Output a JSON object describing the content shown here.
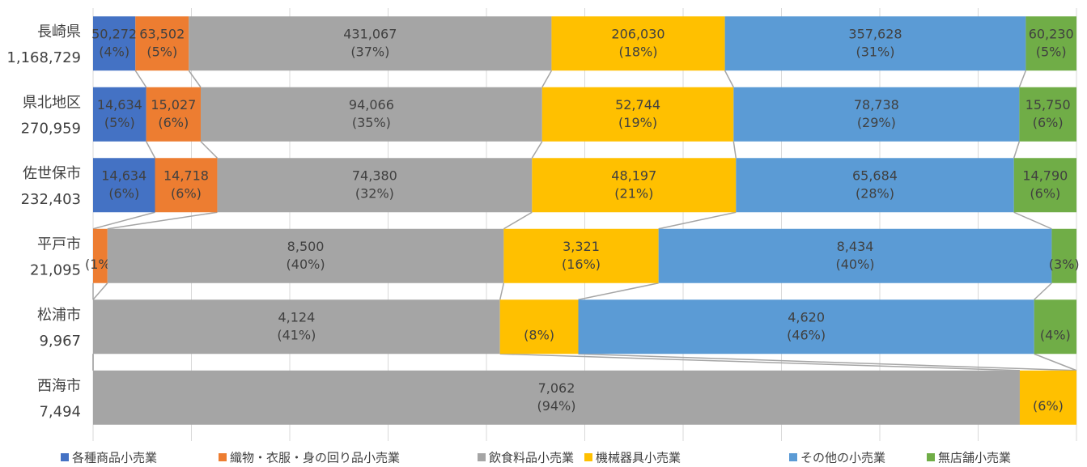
{
  "chart_data": {
    "type": "stacked_bar_100",
    "categories": [
      "長崎県",
      "県北地区",
      "佐世保市",
      "平戸市",
      "松浦市",
      "西海市"
    ],
    "totals": [
      1168729,
      270959,
      232403,
      21095,
      9967,
      7494
    ],
    "total_labels": [
      "1,168,729",
      "270,959",
      "232,403",
      "21,095",
      "9,967",
      "7,494"
    ],
    "xlim": [
      0,
      100
    ],
    "xticks": [
      0,
      10,
      20,
      30,
      40,
      50,
      60,
      70,
      80,
      90,
      100
    ],
    "grid": true,
    "legend": "bottom",
    "series": [
      {
        "name": "各種商品小売業",
        "color": "#4472c4",
        "values": [
          50272,
          14634,
          14634,
          null,
          null,
          null
        ],
        "value_labels": [
          "50,272",
          "14,634",
          "14,634",
          null,
          null,
          null
        ],
        "percent_labels": [
          "(4%)",
          "(5%)",
          "(6%)",
          null,
          null,
          null
        ]
      },
      {
        "name": "織物・衣服・身の回り品小売業",
        "color": "#ed7d31",
        "values": [
          63502,
          15027,
          14718,
          309,
          null,
          null
        ],
        "value_labels": [
          "63,502",
          "15,027",
          "14,718",
          null,
          null,
          null
        ],
        "percent_labels": [
          "(5%)",
          "(6%)",
          "(6%)",
          "(1%)",
          null,
          null
        ]
      },
      {
        "name": "飲食料品小売業",
        "color": "#a5a5a5",
        "values": [
          431067,
          94066,
          74380,
          8500,
          4124,
          7062
        ],
        "value_labels": [
          "431,067",
          "94,066",
          "74,380",
          "8,500",
          "4,124",
          "7,062"
        ],
        "percent_labels": [
          "(37%)",
          "(35%)",
          "(32%)",
          "(40%)",
          "(41%)",
          "(94%)"
        ]
      },
      {
        "name": "機械器具小売業",
        "color": "#ffc000",
        "values": [
          206030,
          52744,
          48197,
          3321,
          794,
          432
        ],
        "value_labels": [
          "206,030",
          "52,744",
          "48,197",
          "3,321",
          null,
          null
        ],
        "percent_labels": [
          "(18%)",
          "(19%)",
          "(21%)",
          "(16%)",
          "(8%)",
          "(6%)"
        ]
      },
      {
        "name": "その他の小売業",
        "color": "#5b9bd5",
        "values": [
          357628,
          78738,
          65684,
          8434,
          4620,
          null
        ],
        "value_labels": [
          "357,628",
          "78,738",
          "65,684",
          "8,434",
          "4,620",
          null
        ],
        "percent_labels": [
          "(31%)",
          "(29%)",
          "(28%)",
          "(40%)",
          "(46%)",
          null
        ]
      },
      {
        "name": "無店舗小売業",
        "color": "#70ad47",
        "values": [
          60230,
          15750,
          14790,
          531,
          429,
          null
        ],
        "value_labels": [
          "60,230",
          "15,750",
          "14,790",
          null,
          null,
          null
        ],
        "percent_labels": [
          "(5%)",
          "(6%)",
          "(6%)",
          "(3%)",
          "(4%)",
          null
        ]
      }
    ]
  }
}
